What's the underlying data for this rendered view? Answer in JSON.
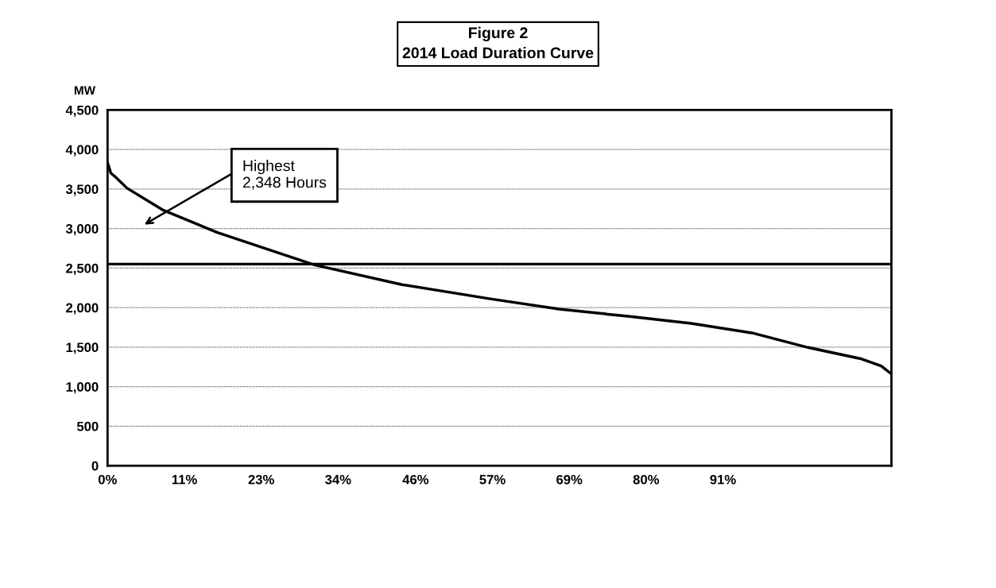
{
  "chart_data": {
    "type": "line",
    "title": "Figure 2\n2014 Load Duration Curve",
    "ylabel": "MW",
    "x": [
      0,
      0.5,
      1.2,
      2.9,
      8.3,
      16.3,
      30.7,
      43.7,
      56.8,
      67.0,
      77.2,
      86.6,
      95.6,
      103.7,
      111.9,
      114.8,
      116.3
    ],
    "series": [
      {
        "color": "#000000",
        "values": [
          3830,
          3700,
          3650,
          3510,
          3230,
          2950,
          2540,
          2290,
          2110,
          1980,
          1890,
          1800,
          1680,
          1500,
          1350,
          1260,
          1160
        ]
      }
    ],
    "xlim": [
      0,
      116.3
    ],
    "xticks": [
      {
        "value": 0,
        "label": "0%"
      },
      {
        "value": 11.4,
        "label": "11%"
      },
      {
        "value": 22.8,
        "label": "23%"
      },
      {
        "value": 34.2,
        "label": "34%"
      },
      {
        "value": 45.7,
        "label": "46%"
      },
      {
        "value": 57.1,
        "label": "57%"
      },
      {
        "value": 68.5,
        "label": "69%"
      },
      {
        "value": 79.9,
        "label": "80%"
      },
      {
        "value": 91.3,
        "label": "91%"
      }
    ],
    "ylim": [
      0,
      4500
    ],
    "yticks": [
      {
        "value": 0,
        "label": "0"
      },
      {
        "value": 500,
        "label": "500"
      },
      {
        "value": 1000,
        "label": "1,000"
      },
      {
        "value": 1500,
        "label": "1,500"
      },
      {
        "value": 2000,
        "label": "2,000"
      },
      {
        "value": 2500,
        "label": "2,500"
      },
      {
        "value": 3000,
        "label": "3,000"
      },
      {
        "value": 3500,
        "label": "3,500"
      },
      {
        "value": 4000,
        "label": "4,000"
      },
      {
        "value": 4500,
        "label": "4,500"
      }
    ],
    "ref_lines": [
      {
        "axis": "y",
        "value": 2550,
        "color": "#000000",
        "line_style": "solid"
      }
    ],
    "annotations": [
      "Highest\n2,348 Hours"
    ],
    "grid": "y",
    "line_style": "solid",
    "marker": "none",
    "legend": false
  }
}
